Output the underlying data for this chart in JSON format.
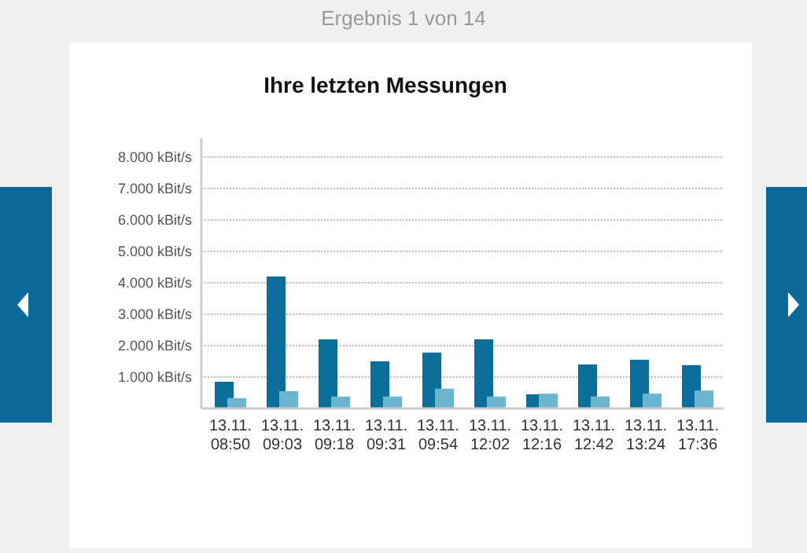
{
  "chart_data": {
    "type": "bar",
    "title": "Ihre letzten Messungen",
    "annotations": [
      "Ergebnis 1 von 14"
    ],
    "categories": [
      "13.11.\n08:50",
      "13.11.\n09:03",
      "13.11.\n09:18",
      "13.11.\n09:31",
      "13.11.\n09:54",
      "13.11.\n12:02",
      "13.11.\n12:16",
      "13.11.\n12:42",
      "13.11.\n13:24",
      "13.11.\n17:36"
    ],
    "series": [
      {
        "color": "#0b6f9c",
        "values": [
          850,
          4200,
          2200,
          1500,
          1780,
          2200,
          450,
          1400,
          1550,
          1380
        ]
      },
      {
        "color": "#6bb5d0",
        "values": [
          330,
          550,
          380,
          380,
          630,
          380,
          470,
          380,
          470,
          570
        ]
      }
    ],
    "ylim": [
      0,
      8600
    ],
    "yticks": [
      {
        "value": 1000,
        "label": "1.000 kBit/s"
      },
      {
        "value": 2000,
        "label": "2.000 kBit/s"
      },
      {
        "value": 3000,
        "label": "3.000 kBit/s"
      },
      {
        "value": 4000,
        "label": "4.000 kBit/s"
      },
      {
        "value": 5000,
        "label": "5.000 kBit/s"
      },
      {
        "value": 6000,
        "label": "6.000 kBit/s"
      },
      {
        "value": 7000,
        "label": "7.000 kBit/s"
      },
      {
        "value": 8000,
        "label": "8.000 kBit/s"
      }
    ],
    "grid": true
  }
}
